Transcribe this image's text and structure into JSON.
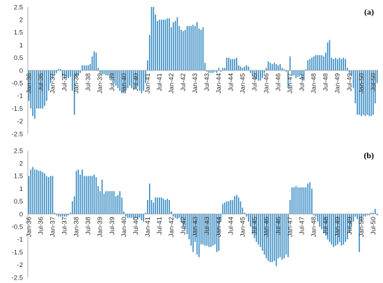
{
  "chart_data": [
    {
      "type": "bar",
      "panel_label": "(a)",
      "title": "",
      "xlabel": "",
      "ylabel": "",
      "ylim": [
        -2.5,
        2.5
      ],
      "yticks": [
        "2.5",
        "2",
        "1.5",
        "1",
        "0.5",
        "0",
        "-0.5",
        "-1",
        "-1.5",
        "-2",
        "-2.5"
      ],
      "ytick_values": [
        2.5,
        2,
        1.5,
        1,
        0.5,
        0,
        -0.5,
        -1,
        -1.5,
        -2,
        -2.5
      ],
      "xtick_labels": [
        "Jan-36",
        "Jul-36",
        "Jan-37",
        "Jul-37",
        "Jan-38",
        "Jul-38",
        "Jan-39",
        "Jul-39",
        "Jan-40",
        "Jul-40",
        "Jan-41",
        "Jul-41",
        "Jan-42",
        "Jul-42",
        "Jan-43",
        "Jul-43",
        "Jan-44",
        "Jul-44",
        "Jan-45",
        "Jul-45",
        "Jan-46",
        "Jul-46",
        "Jan-47",
        "Jul-47",
        "Jan-48",
        "Jul-48",
        "Jan-49",
        "Jul-49",
        "Jan-50",
        "Jul-50"
      ],
      "xtick_label_position": "below-zero-line",
      "grid": false,
      "bar_color": "#2e86c1",
      "values": [
        -1.2,
        -1.5,
        -1.8,
        -1.9,
        -1.5,
        -1.5,
        -1.5,
        -1.5,
        -1.4,
        -1.2,
        -0.8,
        -0.5,
        -0.3,
        -0.2,
        -0.1,
        0.05,
        0.05,
        -0.25,
        -0.3,
        -0.3,
        -0.3,
        -0.25,
        -0.8,
        -1.75,
        -0.25,
        -0.2,
        -0.1,
        0.2,
        0.2,
        0.2,
        0.2,
        0.25,
        0.55,
        0.75,
        0.7,
        0.1,
        -0.1,
        -0.15,
        -0.15,
        -0.2,
        -0.2,
        -0.3,
        -0.4,
        -0.5,
        -0.6,
        -0.7,
        -0.8,
        -0.9,
        -0.9,
        -0.8,
        -0.7,
        -0.6,
        -0.7,
        -0.75,
        -0.7,
        -0.6,
        -0.8,
        -0.9,
        -0.8,
        -0.5,
        0.4,
        1.4,
        2.5,
        2.5,
        2.2,
        1.95,
        2.0,
        2.0,
        2.0,
        2.0,
        2.05,
        2.05,
        1.7,
        1.9,
        1.95,
        2.1,
        1.75,
        1.6,
        1.55,
        1.6,
        1.75,
        1.75,
        1.75,
        1.8,
        1.75,
        1.9,
        1.65,
        1.6,
        1.7,
        0.3,
        -0.05,
        -0.1,
        -0.1,
        -0.1,
        -0.05,
        -0.1,
        0.1,
        -0.05,
        0.1,
        0.1,
        0.5,
        0.5,
        0.45,
        0.45,
        0.45,
        0.5,
        0.2,
        0.15,
        0.1,
        0.15,
        0.2,
        0.15,
        -0.1,
        -0.2,
        -0.3,
        -0.35,
        -0.4,
        -0.4,
        -0.3,
        -0.1,
        0.1,
        0.35,
        0.3,
        0.25,
        0.3,
        0.25,
        0.2,
        0.25,
        0.1,
        0.05,
        -0.05,
        -0.7,
        0.55,
        -0.2,
        -0.2,
        -0.3,
        -0.25,
        -0.15,
        -0.3,
        -0.4,
        0.05,
        0.4,
        0.45,
        0.5,
        0.55,
        0.6,
        0.6,
        0.6,
        0.6,
        0.55,
        0.7,
        1.1,
        1.2,
        0.5,
        0.45,
        0.5,
        0.45,
        0.5,
        0.45,
        0.5,
        0.45,
        0.1,
        -0.1,
        -0.2,
        -0.7,
        -1.3,
        -1.75,
        -1.75,
        -1.8,
        -1.75,
        -1.8,
        -1.75,
        -1.8,
        -1.8,
        -1.75,
        -1.3,
        -0.5
      ]
    },
    {
      "type": "bar",
      "panel_label": "(b)",
      "title": "",
      "xlabel": "",
      "ylabel": "",
      "ylim": [
        -2.5,
        2.5
      ],
      "yticks": [
        "2.5",
        "2",
        "1.5",
        "1",
        "0.5",
        "0",
        "-0.5",
        "-1",
        "-1.5",
        "-2",
        "-2.5"
      ],
      "ytick_values": [
        2.5,
        2,
        1.5,
        1,
        0.5,
        0,
        -0.5,
        -1,
        -1.5,
        -2,
        -2.5
      ],
      "xtick_labels": [
        "Jan-36",
        "Jul-36",
        "Jan-37",
        "Jul-37",
        "Jan-38",
        "Jul-38",
        "Jan-39",
        "Jul-39",
        "Jan-40",
        "Jul-40",
        "Jan-41",
        "Jul-41",
        "Jan-42",
        "Jul-42",
        "Jan-43",
        "Jul-43",
        "Jan-44",
        "Jul-44",
        "Jan-45",
        "Jul-45",
        "Jan-46",
        "Jul-46",
        "Jan-47",
        "Jul-47",
        "Jan-48",
        "Jul-48",
        "Jan-49",
        "Jul-49",
        "Jan-50",
        "Jul-50"
      ],
      "xtick_label_position": "below-zero-line",
      "grid": false,
      "bar_color": "#2e86c1",
      "values": [
        1.5,
        1.75,
        1.85,
        1.75,
        1.75,
        1.7,
        1.7,
        1.65,
        1.6,
        1.5,
        1.45,
        1.5,
        1.5,
        0.05,
        -0.05,
        -0.1,
        -0.1,
        -0.1,
        -0.1,
        -0.1,
        -0.05,
        0.05,
        0.5,
        0.7,
        1.7,
        1.75,
        1.55,
        1.75,
        1.5,
        1.5,
        1.5,
        1.5,
        1.5,
        1.55,
        1.45,
        1.1,
        0.9,
        1.35,
        0.8,
        0.9,
        0.9,
        0.9,
        0.9,
        0.9,
        0.7,
        0.75,
        0.9,
        0.65,
        0.1,
        -0.1,
        -0.15,
        -0.15,
        -0.15,
        -0.2,
        -0.15,
        -0.2,
        -0.15,
        -0.25,
        -0.3,
        0.05,
        0.55,
        1.2,
        0.55,
        0.45,
        0.65,
        0.65,
        0.65,
        0.65,
        0.6,
        0.55,
        0.6,
        0.55,
        0.1,
        -0.1,
        -0.15,
        -0.2,
        -0.15,
        -0.3,
        -0.5,
        -0.6,
        -0.8,
        -1.0,
        -1.25,
        -1.5,
        -1.1,
        -1.6,
        -1.7,
        -1.2,
        -1.2,
        -1.25,
        -1.25,
        -1.3,
        -1.3,
        -1.25,
        -1.2,
        -1.5,
        -1.45,
        -0.3,
        0.4,
        0.45,
        0.5,
        0.5,
        0.55,
        0.55,
        0.7,
        0.75,
        0.65,
        0.5,
        0.25,
        0.05,
        -0.1,
        -0.3,
        -0.5,
        -0.8,
        -0.95,
        -1.1,
        -1.2,
        -1.3,
        -1.45,
        -1.6,
        -1.75,
        -1.85,
        -1.9,
        -1.9,
        -1.85,
        -2.05,
        -1.75,
        -1.7,
        -1.8,
        -1.75,
        -1.6,
        -1.7,
        0.55,
        1.05,
        1.05,
        1.1,
        1.05,
        1.05,
        1.05,
        1.05,
        1.05,
        1.2,
        1.25,
        1.0,
        -0.05,
        -0.1,
        -0.3,
        -0.5,
        -0.6,
        -0.75,
        -0.85,
        -1.0,
        -1.1,
        -1.2,
        -1.3,
        -1.25,
        -1.2,
        -1.1,
        -1.25,
        -1.2,
        -1.1,
        -1.0,
        -0.75,
        -0.5,
        -0.3,
        -0.1,
        -0.2,
        -1.5,
        -0.3,
        -0.1,
        -0.1,
        -0.05,
        -0.05,
        0.05,
        0.05,
        0.2,
        -0.05
      ]
    }
  ]
}
